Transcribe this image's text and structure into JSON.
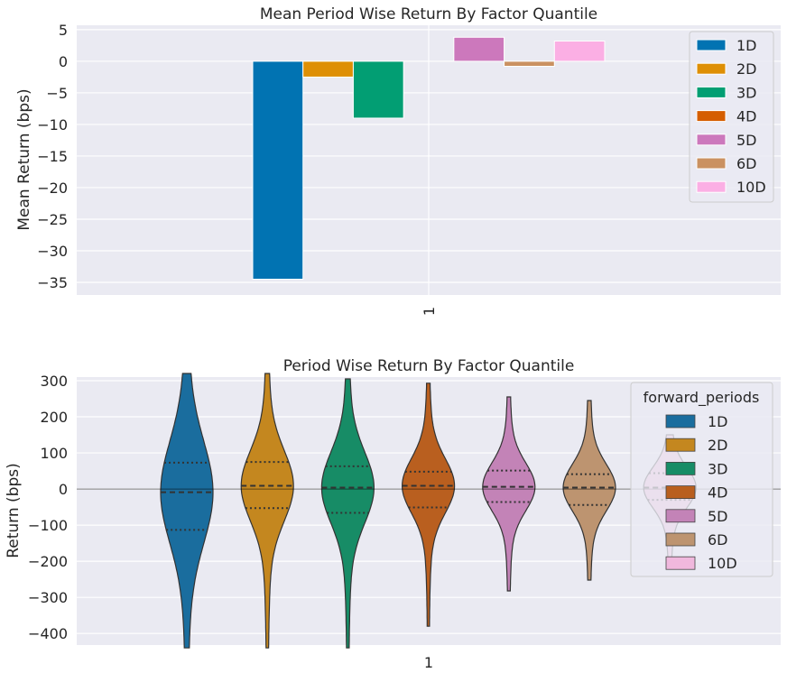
{
  "chart_data": [
    {
      "type": "bar",
      "title": "Mean Period Wise Return By Factor Quantile",
      "xlabel": "",
      "ylabel": "Mean Return (bps)",
      "categories": [
        "1"
      ],
      "ylim": [
        -37,
        5.7
      ],
      "yticks": [
        5,
        0,
        -5,
        -10,
        -15,
        -20,
        -25,
        -30,
        -35
      ],
      "ytick_labels": [
        "5",
        "0",
        "−5",
        "−10",
        "−15",
        "−20",
        "−25",
        "−30",
        "−35"
      ],
      "grid": true,
      "legend_position": "top-right",
      "series": [
        {
          "name": "1D",
          "values": [
            -34.5
          ],
          "color": "#0173b2"
        },
        {
          "name": "2D",
          "values": [
            -2.5
          ],
          "color": "#de8f05"
        },
        {
          "name": "3D",
          "values": [
            -9.0
          ],
          "color": "#029e73"
        },
        {
          "name": "4D",
          "values": [
            0.0
          ],
          "color": "#d55e00"
        },
        {
          "name": "5D",
          "values": [
            3.8
          ],
          "color": "#cc78bc"
        },
        {
          "name": "6D",
          "values": [
            -0.8
          ],
          "color": "#ca9161"
        },
        {
          "name": "10D",
          "values": [
            3.2
          ],
          "color": "#fbafe4"
        }
      ]
    },
    {
      "type": "violin",
      "title": "Period Wise Return By Factor Quantile",
      "xlabel": "",
      "ylabel": "Return (bps)",
      "categories": [
        "1"
      ],
      "ylim": [
        -432,
        310
      ],
      "yticks": [
        300,
        200,
        100,
        0,
        -100,
        -200,
        -300,
        -400
      ],
      "ytick_labels": [
        "300",
        "200",
        "100",
        "0",
        "−100",
        "−200",
        "−300",
        "−400"
      ],
      "grid": true,
      "legend_title": "forward_periods",
      "legend_position": "top-right",
      "series": [
        {
          "name": "1D",
          "color": "#1a6d9e",
          "min": -440,
          "q1": -113,
          "median": -9,
          "q3": 73,
          "max": 320
        },
        {
          "name": "2D",
          "color": "#c4871f",
          "min": -440,
          "q1": -53,
          "median": 9,
          "q3": 75,
          "max": 320
        },
        {
          "name": "3D",
          "color": "#178c66",
          "min": -440,
          "q1": -66,
          "median": 4,
          "q3": 63,
          "max": 305
        },
        {
          "name": "4D",
          "color": "#b95f1f",
          "min": -380,
          "q1": -51,
          "median": 9,
          "q3": 48,
          "max": 293
        },
        {
          "name": "5D",
          "color": "#c383b7",
          "min": -282,
          "q1": -36,
          "median": 6,
          "q3": 51,
          "max": 255
        },
        {
          "name": "6D",
          "color": "#bd9470",
          "min": -252,
          "q1": -44,
          "median": 4,
          "q3": 41,
          "max": 245
        },
        {
          "name": "10D",
          "color": "#f0b8dd",
          "min": -190,
          "q1": -30,
          "median": 4,
          "q3": 44,
          "max": 150
        }
      ]
    }
  ]
}
